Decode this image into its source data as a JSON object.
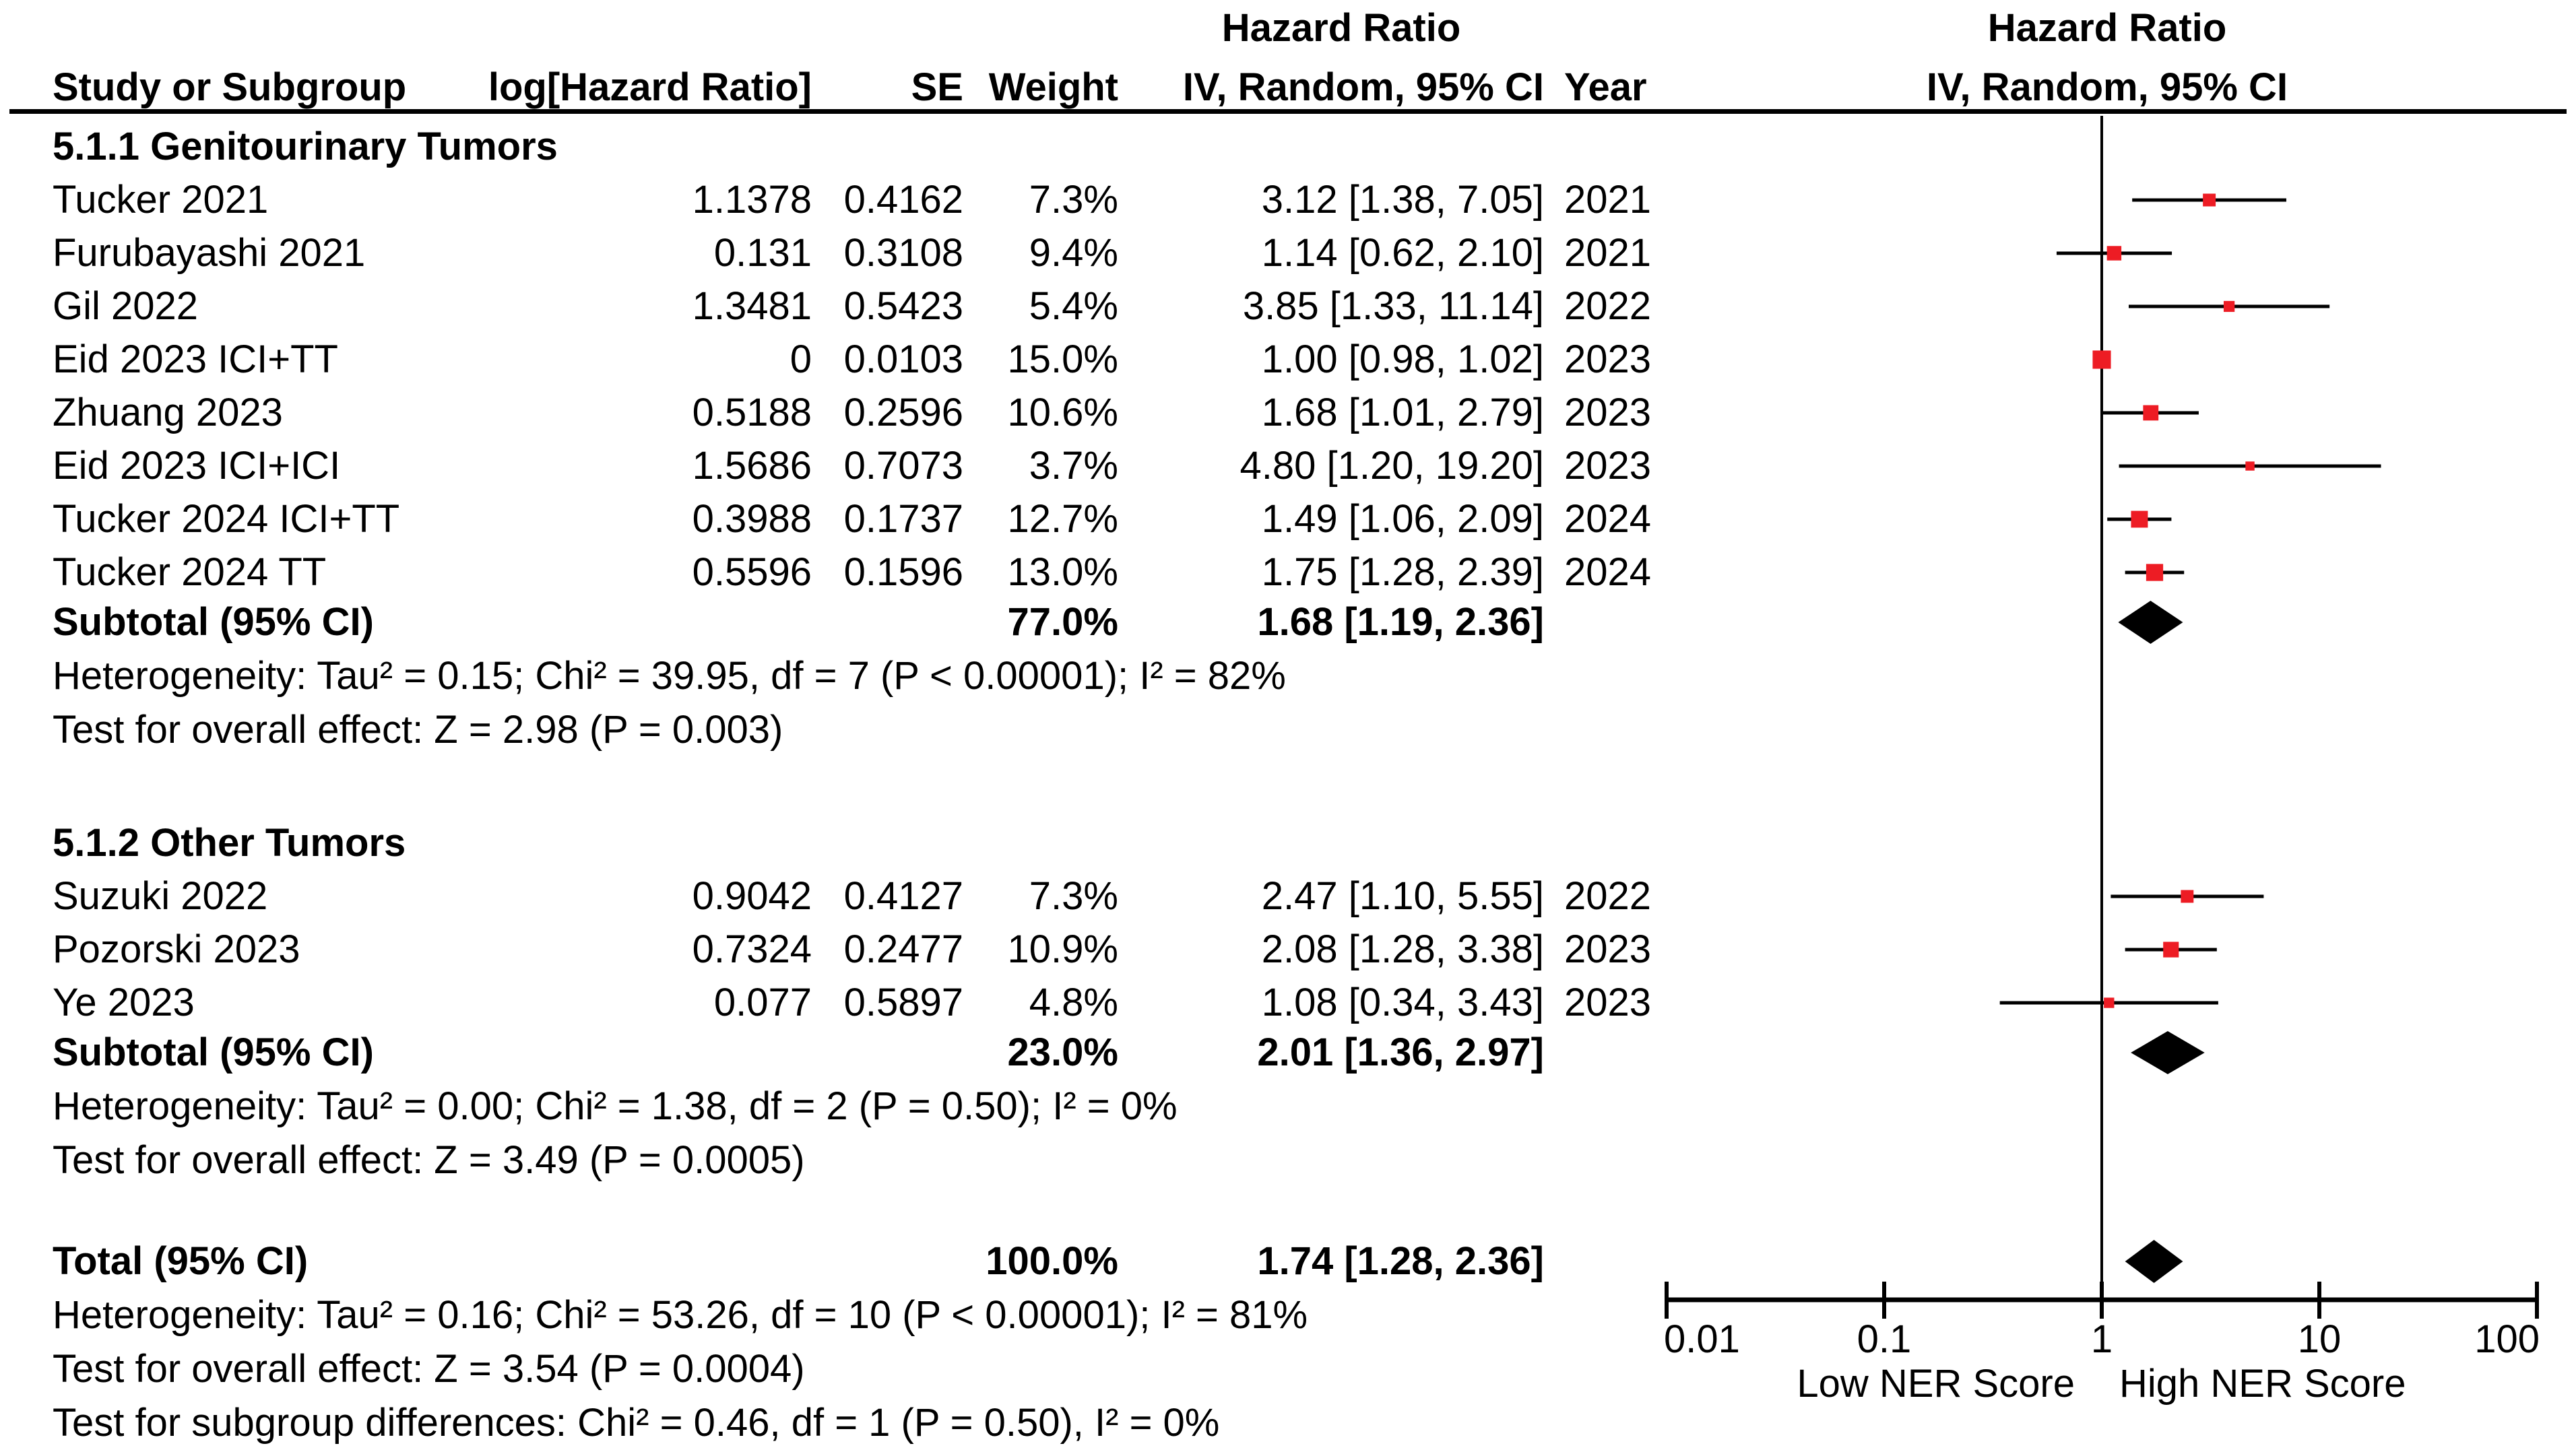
{
  "table_header": {
    "col_study": "Study or Subgroup",
    "col_log_hr": "log[Hazard Ratio]",
    "col_se": "SE",
    "col_weight": "Weight",
    "col_ci_line1": "Hazard Ratio",
    "col_ci_line2": "IV, Random, 95% CI",
    "col_year": "Year"
  },
  "plot_header": {
    "line1": "Hazard Ratio",
    "line2": "IV, Random, 95% CI"
  },
  "groups": [
    {
      "title": "5.1.1 Genitourinary Tumors",
      "studies": [
        {
          "name": "Tucker 2021",
          "log_hr": "1.1378",
          "se": "0.4162",
          "weight": "7.3%",
          "ci_text": "3.12 [1.38, 7.05]",
          "year": "2021",
          "hr": 3.12,
          "lo": 1.38,
          "hi": 7.05,
          "weight_pct": 7.3
        },
        {
          "name": "Furubayashi 2021",
          "log_hr": "0.131",
          "se": "0.3108",
          "weight": "9.4%",
          "ci_text": "1.14 [0.62, 2.10]",
          "year": "2021",
          "hr": 1.14,
          "lo": 0.62,
          "hi": 2.1,
          "weight_pct": 9.4
        },
        {
          "name": "Gil 2022",
          "log_hr": "1.3481",
          "se": "0.5423",
          "weight": "5.4%",
          "ci_text": "3.85 [1.33, 11.14]",
          "year": "2022",
          "hr": 3.85,
          "lo": 1.33,
          "hi": 11.14,
          "weight_pct": 5.4
        },
        {
          "name": "Eid 2023 ICI+TT",
          "log_hr": "0",
          "se": "0.0103",
          "weight": "15.0%",
          "ci_text": "1.00 [0.98, 1.02]",
          "year": "2023",
          "hr": 1.0,
          "lo": 0.98,
          "hi": 1.02,
          "weight_pct": 15.0
        },
        {
          "name": "Zhuang 2023",
          "log_hr": "0.5188",
          "se": "0.2596",
          "weight": "10.6%",
          "ci_text": "1.68 [1.01, 2.79]",
          "year": "2023",
          "hr": 1.68,
          "lo": 1.01,
          "hi": 2.79,
          "weight_pct": 10.6
        },
        {
          "name": "Eid 2023 ICI+ICI",
          "log_hr": "1.5686",
          "se": "0.7073",
          "weight": "3.7%",
          "ci_text": "4.80 [1.20, 19.20]",
          "year": "2023",
          "hr": 4.8,
          "lo": 1.2,
          "hi": 19.2,
          "weight_pct": 3.7
        },
        {
          "name": "Tucker 2024 ICI+TT",
          "log_hr": "0.3988",
          "se": "0.1737",
          "weight": "12.7%",
          "ci_text": "1.49 [1.06, 2.09]",
          "year": "2024",
          "hr": 1.49,
          "lo": 1.06,
          "hi": 2.09,
          "weight_pct": 12.7
        },
        {
          "name": "Tucker 2024 TT",
          "log_hr": "0.5596",
          "se": "0.1596",
          "weight": "13.0%",
          "ci_text": "1.75 [1.28, 2.39]",
          "year": "2024",
          "hr": 1.75,
          "lo": 1.28,
          "hi": 2.39,
          "weight_pct": 13.0
        }
      ],
      "subtotal": {
        "label": "Subtotal (95% CI)",
        "weight": "77.0%",
        "ci_text": "1.68 [1.19, 2.36]",
        "hr": 1.68,
        "lo": 1.19,
        "hi": 2.36
      },
      "heterogeneity": "Heterogeneity: Tau² = 0.15; Chi² = 39.95, df = 7 (P < 0.00001); I² = 82%",
      "overall_effect": "Test for overall effect: Z = 2.98 (P = 0.003)"
    },
    {
      "title": "5.1.2 Other Tumors",
      "studies": [
        {
          "name": "Suzuki 2022",
          "log_hr": "0.9042",
          "se": "0.4127",
          "weight": "7.3%",
          "ci_text": "2.47 [1.10, 5.55]",
          "year": "2022",
          "hr": 2.47,
          "lo": 1.1,
          "hi": 5.55,
          "weight_pct": 7.3
        },
        {
          "name": "Pozorski 2023",
          "log_hr": "0.7324",
          "se": "0.2477",
          "weight": "10.9%",
          "ci_text": "2.08 [1.28, 3.38]",
          "year": "2023",
          "hr": 2.08,
          "lo": 1.28,
          "hi": 3.38,
          "weight_pct": 10.9
        },
        {
          "name": "Ye 2023",
          "log_hr": "0.077",
          "se": "0.5897",
          "weight": "4.8%",
          "ci_text": "1.08 [0.34, 3.43]",
          "year": "2023",
          "hr": 1.08,
          "lo": 0.34,
          "hi": 3.43,
          "weight_pct": 4.8
        }
      ],
      "subtotal": {
        "label": "Subtotal (95% CI)",
        "weight": "23.0%",
        "ci_text": "2.01 [1.36, 2.97]",
        "hr": 2.01,
        "lo": 1.36,
        "hi": 2.97
      },
      "heterogeneity": "Heterogeneity: Tau² = 0.00; Chi² = 1.38, df = 2 (P = 0.50); I² = 0%",
      "overall_effect": "Test for overall effect: Z = 3.49 (P = 0.0005)"
    }
  ],
  "total": {
    "label": "Total (95% CI)",
    "weight": "100.0%",
    "ci_text": "1.74 [1.28, 2.36]",
    "hr": 1.74,
    "lo": 1.28,
    "hi": 2.36
  },
  "footer": {
    "heterogeneity": "Heterogeneity: Tau² = 0.16; Chi² = 53.26, df = 10 (P < 0.00001); I² = 81%",
    "overall_effect": "Test for overall effect: Z = 3.54 (P = 0.0004)",
    "subgroup_differences": "Test for subgroup differences: Chi² = 0.46, df = 1 (P = 0.50), I² = 0%"
  },
  "axis": {
    "tick_labels": [
      "0.01",
      "0.1",
      "1",
      "10",
      "100"
    ],
    "tick_values": [
      0.01,
      0.1,
      1,
      10,
      100
    ],
    "left_label": "Low NER Score",
    "right_label": "High NER Score"
  },
  "colors": {
    "marker_red": "#ED1C24",
    "ink": "#000000"
  },
  "chart_data": {
    "type": "scatter",
    "subtype": "forest_plot",
    "title": "Hazard Ratio IV, Random, 95% CI",
    "x_scale": "log10",
    "xlim": [
      0.01,
      100
    ],
    "x_ticks": [
      0.01,
      0.1,
      1,
      10,
      100
    ],
    "null_line": 1,
    "x_caption_left": "Low NER Score",
    "x_caption_right": "High NER Score",
    "series": [
      {
        "name": "5.1.1 Genitourinary Tumors",
        "points": [
          {
            "label": "Tucker 2021",
            "hr": 3.12,
            "ci_low": 1.38,
            "ci_high": 7.05,
            "weight_pct": 7.3,
            "year": 2021
          },
          {
            "label": "Furubayashi 2021",
            "hr": 1.14,
            "ci_low": 0.62,
            "ci_high": 2.1,
            "weight_pct": 9.4,
            "year": 2021
          },
          {
            "label": "Gil 2022",
            "hr": 3.85,
            "ci_low": 1.33,
            "ci_high": 11.14,
            "weight_pct": 5.4,
            "year": 2022
          },
          {
            "label": "Eid 2023 ICI+TT",
            "hr": 1.0,
            "ci_low": 0.98,
            "ci_high": 1.02,
            "weight_pct": 15.0,
            "year": 2023
          },
          {
            "label": "Zhuang 2023",
            "hr": 1.68,
            "ci_low": 1.01,
            "ci_high": 2.79,
            "weight_pct": 10.6,
            "year": 2023
          },
          {
            "label": "Eid 2023 ICI+ICI",
            "hr": 4.8,
            "ci_low": 1.2,
            "ci_high": 19.2,
            "weight_pct": 3.7,
            "year": 2023
          },
          {
            "label": "Tucker 2024 ICI+TT",
            "hr": 1.49,
            "ci_low": 1.06,
            "ci_high": 2.09,
            "weight_pct": 12.7,
            "year": 2024
          },
          {
            "label": "Tucker 2024 TT",
            "hr": 1.75,
            "ci_low": 1.28,
            "ci_high": 2.39,
            "weight_pct": 13.0,
            "year": 2024
          }
        ],
        "summary": {
          "label": "Subtotal (95% CI)",
          "hr": 1.68,
          "ci_low": 1.19,
          "ci_high": 2.36,
          "weight_pct": 77.0
        }
      },
      {
        "name": "5.1.2 Other Tumors",
        "points": [
          {
            "label": "Suzuki 2022",
            "hr": 2.47,
            "ci_low": 1.1,
            "ci_high": 5.55,
            "weight_pct": 7.3,
            "year": 2022
          },
          {
            "label": "Pozorski 2023",
            "hr": 2.08,
            "ci_low": 1.28,
            "ci_high": 3.38,
            "weight_pct": 10.9,
            "year": 2023
          },
          {
            "label": "Ye 2023",
            "hr": 1.08,
            "ci_low": 0.34,
            "ci_high": 3.43,
            "weight_pct": 4.8,
            "year": 2023
          }
        ],
        "summary": {
          "label": "Subtotal (95% CI)",
          "hr": 2.01,
          "ci_low": 1.36,
          "ci_high": 2.97,
          "weight_pct": 23.0
        }
      }
    ],
    "overall": {
      "label": "Total (95% CI)",
      "hr": 1.74,
      "ci_low": 1.28,
      "ci_high": 2.36,
      "weight_pct": 100.0
    }
  }
}
